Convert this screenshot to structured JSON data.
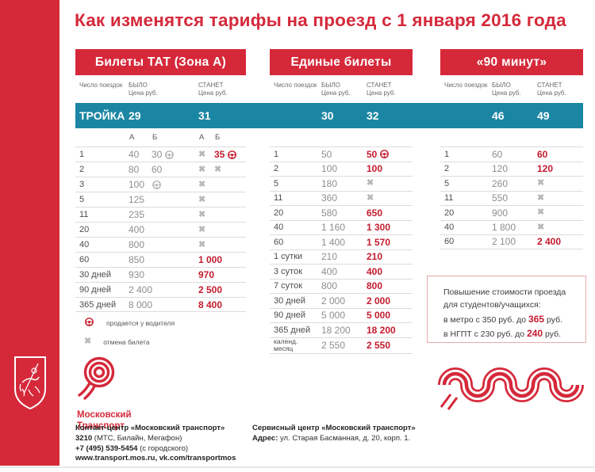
{
  "title": "Как изменятся тарифы на проезд с 1 января 2016 года",
  "colors": {
    "brand_red": "#d5293a",
    "value_red": "#c41b2e",
    "teal": "#1b86a3"
  },
  "tables": [
    {
      "name": "tat",
      "header": "Билеты ТАТ (Зона А)",
      "col_headers": {
        "trips": "Число поездок",
        "was": "БЫЛО",
        "will": "СТАНЕТ",
        "price": "Цена руб."
      },
      "troika": {
        "label": "ТРОЙКА",
        "was": "29",
        "will": "31"
      },
      "sub_cols": [
        "А",
        "Б",
        "А",
        "Б"
      ],
      "rows": [
        {
          "cells": [
            {
              "t": "1"
            },
            {
              "t": "40",
              "cls": "was"
            },
            {
              "t": "30",
              "cls": "was",
              "icon": "wheel-gray"
            },
            {
              "icon": "cross"
            },
            {
              "t": "35",
              "cls": "new",
              "icon": "wheel-red"
            }
          ]
        },
        {
          "cells": [
            {
              "t": "2"
            },
            {
              "t": "80",
              "cls": "was"
            },
            {
              "t": "60",
              "cls": "was"
            },
            {
              "icon": "cross"
            },
            {
              "icon": "cross"
            }
          ]
        },
        {
          "cells": [
            {
              "t": "3"
            },
            {
              "t": "100",
              "cls": "was"
            },
            {
              "icon": "wheel-gray"
            },
            {
              "icon": "cross"
            },
            {}
          ]
        },
        {
          "cells": [
            {
              "t": "5"
            },
            {
              "t": "125",
              "cls": "was",
              "span": 2
            },
            {
              "icon": "cross"
            },
            {}
          ]
        },
        {
          "cells": [
            {
              "t": "11"
            },
            {
              "t": "235",
              "cls": "was",
              "span": 2
            },
            {
              "icon": "cross"
            },
            {}
          ]
        },
        {
          "cells": [
            {
              "t": "20"
            },
            {
              "t": "400",
              "cls": "was",
              "span": 2
            },
            {
              "icon": "cross"
            },
            {}
          ]
        },
        {
          "cells": [
            {
              "t": "40"
            },
            {
              "t": "800",
              "cls": "was",
              "span": 2
            },
            {
              "icon": "cross"
            },
            {}
          ]
        },
        {
          "cells": [
            {
              "t": "60"
            },
            {
              "t": "850",
              "cls": "was",
              "span": 2
            },
            {
              "t": "1 000",
              "cls": "new",
              "span": 2
            }
          ]
        },
        {
          "cells": [
            {
              "t": "30 дней"
            },
            {
              "t": "930",
              "cls": "was",
              "span": 2
            },
            {
              "t": "970",
              "cls": "new",
              "span": 2
            }
          ]
        },
        {
          "cells": [
            {
              "t": "90 дней"
            },
            {
              "t": "2 400",
              "cls": "was",
              "span": 2
            },
            {
              "t": "2 500",
              "cls": "new",
              "span": 2
            }
          ]
        },
        {
          "cells": [
            {
              "t": "365 дней"
            },
            {
              "t": "8 000",
              "cls": "was",
              "span": 2
            },
            {
              "t": "8 400",
              "cls": "new",
              "span": 2
            }
          ]
        }
      ]
    },
    {
      "name": "united",
      "header": "Единые билеты",
      "col_headers": {
        "trips": "Число поездок",
        "was": "БЫЛО",
        "will": "СТАНЕТ",
        "price": "Цена руб."
      },
      "troika": {
        "label": "",
        "was": "30",
        "will": "32"
      },
      "rows": [
        {
          "cells": [
            {
              "t": "1"
            },
            {
              "t": "50",
              "cls": "was"
            },
            {
              "t": "50",
              "cls": "new",
              "icon": "wheel-red"
            }
          ]
        },
        {
          "cells": [
            {
              "t": "2"
            },
            {
              "t": "100",
              "cls": "was"
            },
            {
              "t": "100",
              "cls": "new"
            }
          ]
        },
        {
          "cells": [
            {
              "t": "5"
            },
            {
              "t": "180",
              "cls": "was"
            },
            {
              "icon": "cross"
            }
          ]
        },
        {
          "cells": [
            {
              "t": "11"
            },
            {
              "t": "360",
              "cls": "was"
            },
            {
              "icon": "cross"
            }
          ]
        },
        {
          "cells": [
            {
              "t": "20"
            },
            {
              "t": "580",
              "cls": "was"
            },
            {
              "t": "650",
              "cls": "new"
            }
          ]
        },
        {
          "cells": [
            {
              "t": "40"
            },
            {
              "t": "1 160",
              "cls": "was"
            },
            {
              "t": "1 300",
              "cls": "new"
            }
          ]
        },
        {
          "cells": [
            {
              "t": "60"
            },
            {
              "t": "1 400",
              "cls": "was"
            },
            {
              "t": "1 570",
              "cls": "new"
            }
          ]
        },
        {
          "cells": [
            {
              "t": "1 сутки"
            },
            {
              "t": "210",
              "cls": "was"
            },
            {
              "t": "210",
              "cls": "new"
            }
          ]
        },
        {
          "cells": [
            {
              "t": "3 суток"
            },
            {
              "t": "400",
              "cls": "was"
            },
            {
              "t": "400",
              "cls": "new"
            }
          ]
        },
        {
          "cells": [
            {
              "t": "7 суток"
            },
            {
              "t": "800",
              "cls": "was"
            },
            {
              "t": "800",
              "cls": "new"
            }
          ]
        },
        {
          "cells": [
            {
              "t": "30 дней"
            },
            {
              "t": "2 000",
              "cls": "was"
            },
            {
              "t": "2 000",
              "cls": "new"
            }
          ]
        },
        {
          "cells": [
            {
              "t": "90 дней"
            },
            {
              "t": "5 000",
              "cls": "was"
            },
            {
              "t": "5 000",
              "cls": "new"
            }
          ]
        },
        {
          "cells": [
            {
              "t": "365 дней"
            },
            {
              "t": "18 200",
              "cls": "was"
            },
            {
              "t": "18 200",
              "cls": "new"
            }
          ]
        },
        {
          "cells": [
            {
              "t": "календ.\nмесяц",
              "cls": "small"
            },
            {
              "t": "2 550",
              "cls": "was"
            },
            {
              "t": "2 550",
              "cls": "new"
            }
          ]
        }
      ]
    },
    {
      "name": "90min",
      "header": "«90 минут»",
      "col_headers": {
        "trips": "Число поездок",
        "was": "БЫЛО",
        "will": "СТАНЕТ",
        "price": "Цена руб."
      },
      "troika": {
        "label": "",
        "was": "46",
        "will": "49"
      },
      "rows": [
        {
          "cells": [
            {
              "t": "1"
            },
            {
              "t": "60",
              "cls": "was"
            },
            {
              "t": "60",
              "cls": "new"
            }
          ]
        },
        {
          "cells": [
            {
              "t": "2"
            },
            {
              "t": "120",
              "cls": "was"
            },
            {
              "t": "120",
              "cls": "new"
            }
          ]
        },
        {
          "cells": [
            {
              "t": "5"
            },
            {
              "t": "260",
              "cls": "was"
            },
            {
              "icon": "cross"
            }
          ]
        },
        {
          "cells": [
            {
              "t": "11"
            },
            {
              "t": "550",
              "cls": "was"
            },
            {
              "icon": "cross"
            }
          ]
        },
        {
          "cells": [
            {
              "t": "20"
            },
            {
              "t": "900",
              "cls": "was"
            },
            {
              "icon": "cross"
            }
          ]
        },
        {
          "cells": [
            {
              "t": "40"
            },
            {
              "t": "1 800",
              "cls": "was"
            },
            {
              "icon": "cross"
            }
          ]
        },
        {
          "cells": [
            {
              "t": "60"
            },
            {
              "t": "2 100",
              "cls": "was"
            },
            {
              "t": "2 400",
              "cls": "new"
            }
          ]
        }
      ]
    }
  ],
  "legend": [
    {
      "icon": "wheel-red",
      "label": "продается у водителя"
    },
    {
      "icon": "cross",
      "label": "отмена билета"
    }
  ],
  "note": {
    "line1": "Повышение стоимости проезда",
    "line2": "для студентов/учащихся:",
    "line3_pre": "в метро с 350 руб. до ",
    "line3_val": "365",
    "line3_post": " руб.",
    "line4_pre": "в НГПТ с 230 руб. до ",
    "line4_val": "240",
    "line4_post": " руб."
  },
  "logo": {
    "line1": "Московский",
    "line2": "Транспорт"
  },
  "footer": {
    "contact_title": "Контакт-центр «Московский транспорт»",
    "phone_short": "3210",
    "phone_short_note": " (МТС, Билайн, Мегафон)",
    "phone_city": "+7 (495) 539-5454",
    "phone_city_note": " (с городского)",
    "web": "www.transport.mos.ru, vk.com/transportmos",
    "service_title": "Сервисный центр «Московский транспорт»",
    "address_label": "Адрес:",
    "address": " ул. Старая Басманная,  д. 20, корп. 1."
  }
}
